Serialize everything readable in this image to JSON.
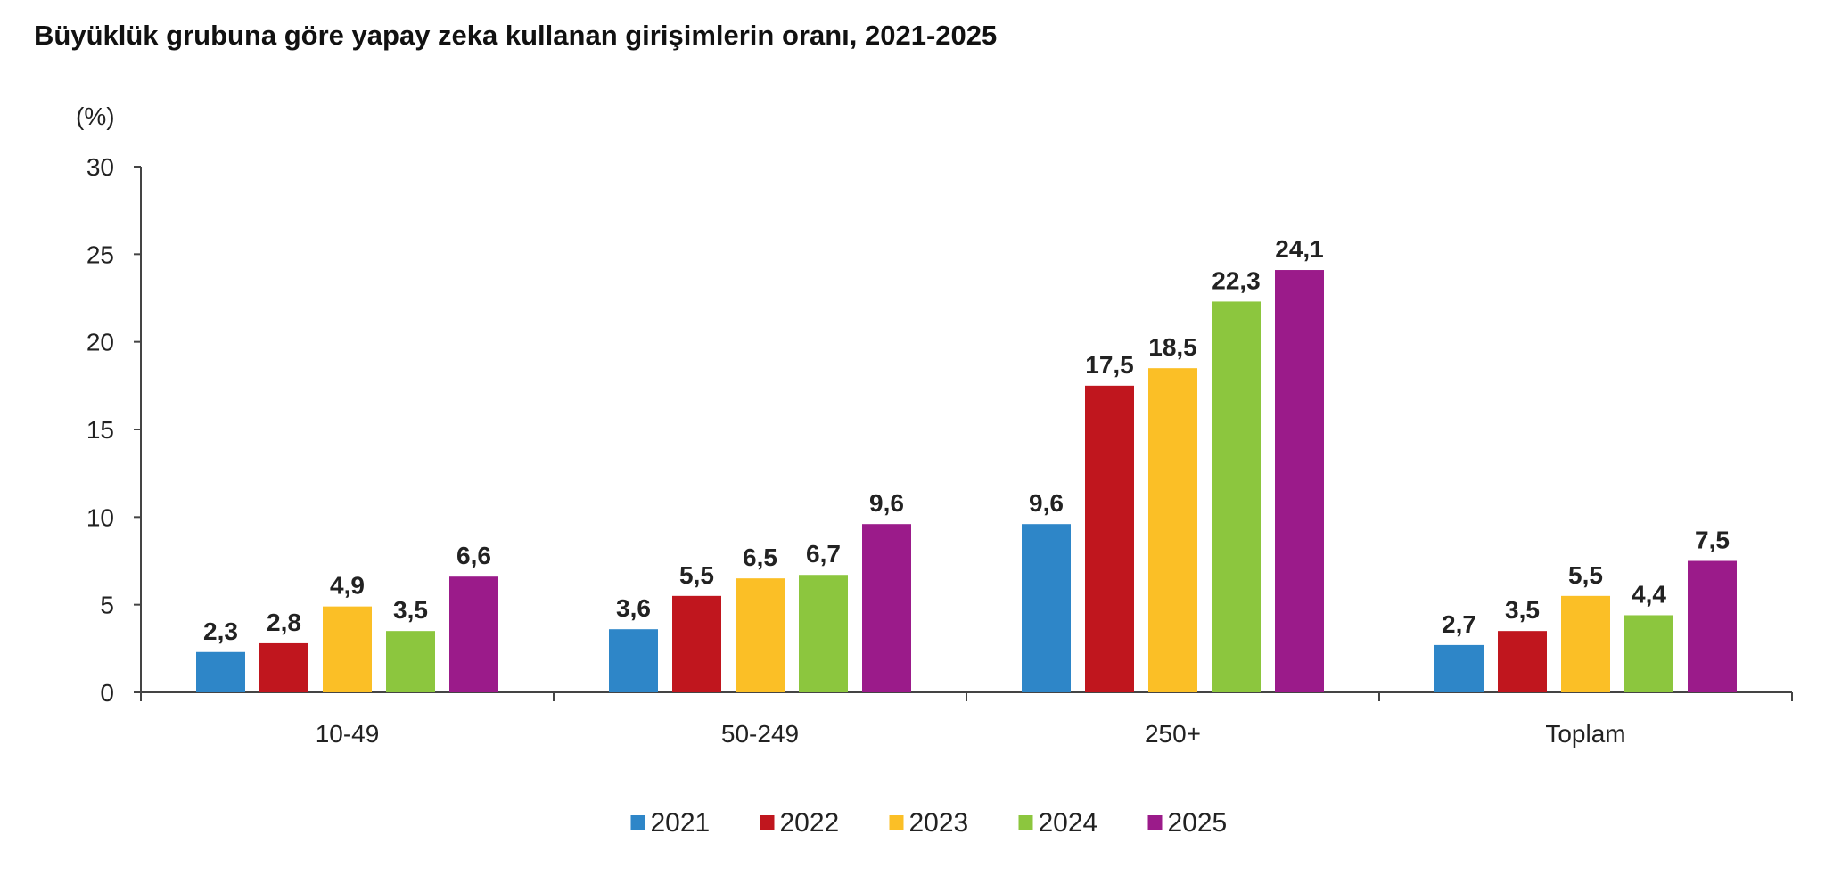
{
  "chart_data": {
    "type": "bar",
    "title": "Büyüklük grubuna göre yapay zeka kullanan girişimlerin oranı, 2021-2025",
    "ylabel": "(%)",
    "xlabel": "",
    "ylim": [
      0,
      30
    ],
    "yticks": [
      0,
      5,
      10,
      15,
      20,
      25,
      30
    ],
    "grid": false,
    "legend_position": "bottom",
    "categories": [
      "10-49",
      "50-249",
      "250+",
      "Toplam"
    ],
    "series": [
      {
        "name": "2021",
        "color": "#2e86c8",
        "values": [
          2.3,
          3.6,
          9.6,
          2.7
        ],
        "labels": [
          "2,3",
          "3,6",
          "9,6",
          "2,7"
        ]
      },
      {
        "name": "2022",
        "color": "#c0161e",
        "values": [
          2.8,
          5.5,
          17.5,
          3.5
        ],
        "labels": [
          "2,8",
          "5,5",
          "17,5",
          "3,5"
        ]
      },
      {
        "name": "2023",
        "color": "#fbbf26",
        "values": [
          4.9,
          6.5,
          18.5,
          5.5
        ],
        "labels": [
          "4,9",
          "6,5",
          "18,5",
          "5,5"
        ]
      },
      {
        "name": "2024",
        "color": "#8cc63e",
        "values": [
          3.5,
          6.7,
          22.3,
          4.4
        ],
        "labels": [
          "3,5",
          "6,7",
          "22,3",
          "4,4"
        ]
      },
      {
        "name": "2025",
        "color": "#9b1b8a",
        "values": [
          6.6,
          9.6,
          24.1,
          7.5
        ],
        "labels": [
          "6,6",
          "9,6",
          "24,1",
          "7,5"
        ]
      }
    ]
  }
}
